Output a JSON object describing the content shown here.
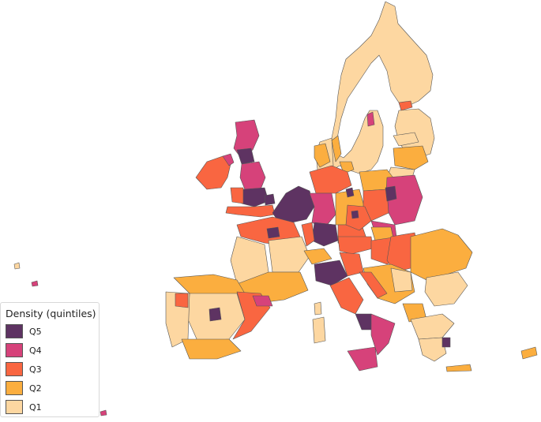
{
  "legend": {
    "title": "Density (quintiles)",
    "items": [
      {
        "label": "Q5",
        "color": "#5e3362"
      },
      {
        "label": "Q4",
        "color": "#d6427a"
      },
      {
        "label": "Q3",
        "color": "#f96641"
      },
      {
        "label": "Q2",
        "color": "#fbae3f"
      },
      {
        "label": "Q1",
        "color": "#fdd7a1"
      }
    ]
  },
  "colors": {
    "q5": "#5e3362",
    "q4": "#d6427a",
    "q3": "#f96641",
    "q2": "#fbae3f",
    "q1": "#fdd7a1",
    "border": "#555555"
  }
}
